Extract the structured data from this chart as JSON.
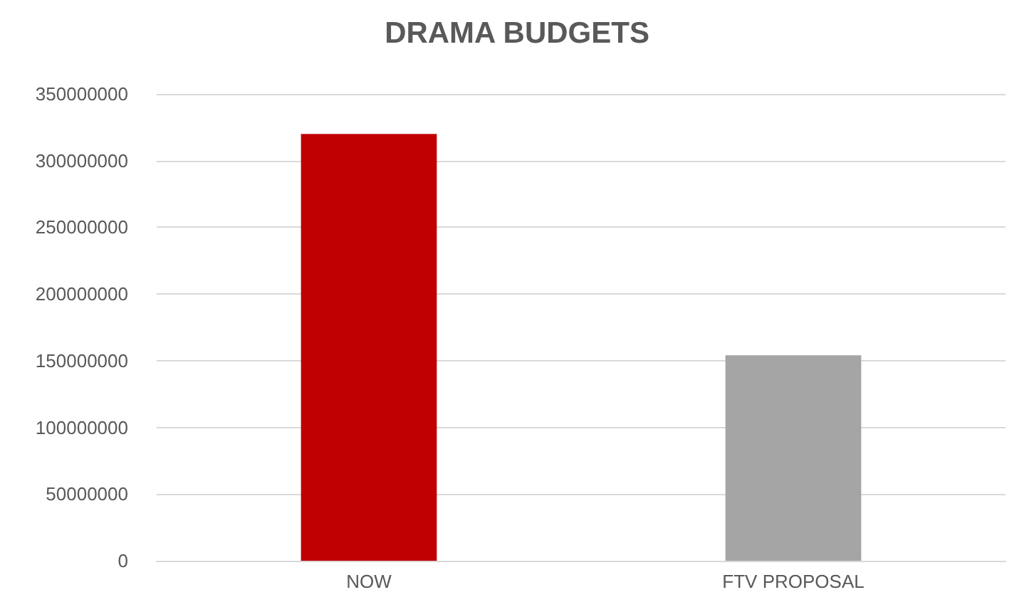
{
  "chart_data": {
    "type": "bar",
    "title": "DRAMA BUDGETS",
    "categories": [
      "NOW",
      "FTV PROPOSAL"
    ],
    "values": [
      320000000,
      154000000
    ],
    "colors": [
      "#c00000",
      "#a5a5a5"
    ],
    "ylim": [
      0,
      350000000
    ],
    "yticks": [
      0,
      50000000,
      100000000,
      150000000,
      200000000,
      250000000,
      300000000,
      350000000
    ],
    "grid": "y"
  }
}
